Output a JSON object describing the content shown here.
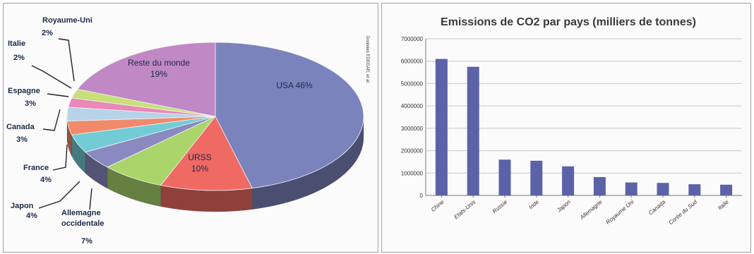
{
  "chart_data": [
    {
      "type": "pie",
      "slices": [
        {
          "label": "USA",
          "value": 46,
          "text": "46%",
          "color": "#7b83bd"
        },
        {
          "label": "URSS",
          "value": 10,
          "text": "10%",
          "color": "#ef6a63"
        },
        {
          "label": "Allemagne occidentale",
          "value": 7,
          "text": "7%",
          "color": "#a9d56a"
        },
        {
          "label": "Japon",
          "value": 4,
          "text": "4%",
          "color": "#8a8ac0"
        },
        {
          "label": "France",
          "value": 4,
          "text": "4%",
          "color": "#72ccd6"
        },
        {
          "label": "Canada",
          "value": 3,
          "text": "3%",
          "color": "#f08a6a"
        },
        {
          "label": "Espagne",
          "value": 3,
          "text": "3%",
          "color": "#b6d3ea"
        },
        {
          "label": "Italie",
          "value": 2,
          "text": "2%",
          "color": "#e889b8"
        },
        {
          "label": "Royaume-Uni",
          "value": 2,
          "text": "2%",
          "color": "#c7e07a"
        },
        {
          "label": "Reste du monde",
          "value": 19,
          "text": "19%",
          "color": "#c088c4"
        }
      ],
      "source": "Données EDEGAR, et al."
    },
    {
      "type": "bar",
      "title": "Emissions de CO2 par pays (milliers de tonnes)",
      "categories": [
        "Chine",
        "Etats-Unis",
        "Russie",
        "Inde",
        "Japon",
        "Allemagne",
        "Royaume Uni",
        "Canada",
        "Corée du Sud",
        "Italie"
      ],
      "values": [
        6100000,
        5750000,
        1600000,
        1550000,
        1300000,
        820000,
        580000,
        560000,
        500000,
        480000
      ],
      "ylim": [
        0,
        7000000
      ],
      "yticks": [
        "0",
        "1000000",
        "2000000",
        "3000000",
        "4000000",
        "5000000",
        "6000000",
        "7000000"
      ],
      "grid": true,
      "bar_color": "#5b62a8"
    }
  ]
}
